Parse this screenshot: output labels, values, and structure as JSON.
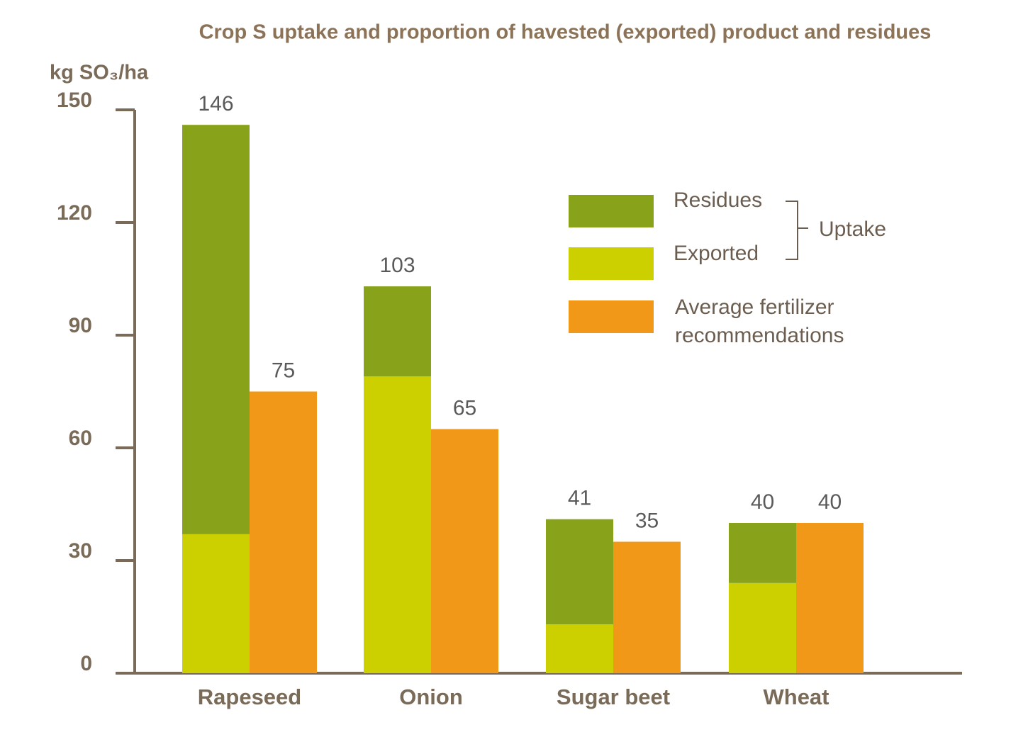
{
  "chart_data": {
    "type": "stacked_grouped_bar",
    "title": "Crop S uptake and proportion of havested (exported) product and residues",
    "y_label": "kg SO₃/ha",
    "categories": [
      "Rapeseed",
      "Onion",
      "Sugar beet",
      "Wheat"
    ],
    "stack_series": [
      {
        "name": "Exported",
        "color": "#cdd000",
        "values": [
          37,
          79,
          13,
          24
        ]
      },
      {
        "name": "Residues",
        "color": "#88a31a",
        "values": [
          109,
          24,
          28,
          16
        ]
      }
    ],
    "stack_group_label": "Uptake",
    "totals": [
      146,
      103,
      41,
      40
    ],
    "series": [
      {
        "name": "Average fertilizer recommendations",
        "color": "#f29818",
        "values": [
          75,
          65,
          35,
          40
        ]
      }
    ],
    "ylim": [
      0,
      150
    ],
    "yticks": [
      0,
      30,
      60,
      90,
      120,
      150
    ]
  }
}
